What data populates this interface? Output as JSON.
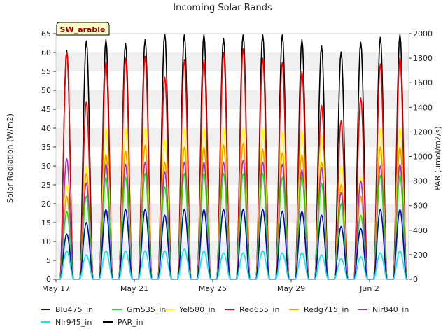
{
  "chart_data": {
    "type": "line",
    "title": "Incoming Solar Bands",
    "badge": "SW_arable",
    "ylabel_left": "Solar Radiation (W/m2)",
    "ylabel_right": "PAR (umol/m2/s)",
    "y_left_range": [
      0,
      65
    ],
    "y_right_range": [
      0,
      2000
    ],
    "y_left_ticks": [
      0,
      5,
      10,
      15,
      20,
      25,
      30,
      35,
      40,
      45,
      50,
      55,
      60,
      65
    ],
    "y_right_ticks": [
      0,
      200,
      400,
      600,
      800,
      1000,
      1200,
      1400,
      1600,
      1800,
      2000
    ],
    "x_range_days": [
      "May 17 00:00",
      "Jun 4 00:00"
    ],
    "x_ticks": [
      {
        "label": "May 17",
        "date": "2024-05-17"
      },
      {
        "label": "May 21",
        "date": "2024-05-21"
      },
      {
        "label": "May 25",
        "date": "2024-05-25"
      },
      {
        "label": "May 29",
        "date": "2024-05-29"
      },
      {
        "label": "Jun 2",
        "date": "2024-06-02"
      }
    ],
    "grid": "horizontal bands",
    "day_dates": [
      "May 17",
      "May 18",
      "May 19",
      "May 20",
      "May 21",
      "May 22",
      "May 23",
      "May 24",
      "May 25",
      "May 26",
      "May 27",
      "May 28",
      "May 29",
      "May 30",
      "May 31",
      "Jun 1",
      "Jun 2",
      "Jun 3"
    ],
    "series": [
      {
        "name": "Blu475_in",
        "color": "#0000cc",
        "axis": "left",
        "daily_peak": [
          12,
          15,
          18.5,
          18.5,
          18.5,
          17,
          18.5,
          18.5,
          18.5,
          18.5,
          18.5,
          18,
          18,
          17,
          14,
          13.5,
          18.5,
          18.5
        ]
      },
      {
        "name": "Grn535_in",
        "color": "#22dd22",
        "axis": "left",
        "daily_peak": [
          18,
          22,
          27,
          27,
          28,
          24.5,
          28,
          28,
          28,
          28,
          28,
          27,
          27,
          25.5,
          20,
          17,
          27.5,
          27.5
        ]
      },
      {
        "name": "Yel580_in",
        "color": "#ffff00",
        "axis": "left",
        "daily_peak": [
          25,
          30,
          40,
          40,
          40,
          37,
          40,
          40,
          40,
          40,
          40,
          39,
          39,
          38,
          30,
          27,
          40,
          40
        ]
      },
      {
        "name": "Red655_in",
        "color": "#ee0000",
        "axis": "left",
        "daily_peak": [
          60,
          47,
          57.5,
          58.5,
          59,
          53.5,
          58,
          58,
          60,
          61,
          58.5,
          57.5,
          55,
          46,
          42,
          48,
          57,
          58.5
        ]
      },
      {
        "name": "Redg715_in",
        "color": "#ff9900",
        "axis": "left",
        "daily_peak": [
          22,
          28,
          33,
          34,
          35.5,
          31,
          35,
          35,
          35.5,
          36,
          34.5,
          33.5,
          33,
          31,
          25,
          22,
          35,
          35
        ]
      },
      {
        "name": "Nir840_in",
        "color": "#9933cc",
        "axis": "left",
        "daily_peak": [
          32,
          25.5,
          30.5,
          30.5,
          31,
          28.5,
          31,
          31,
          31,
          31.5,
          31,
          30.5,
          29,
          29.5,
          23,
          26,
          30,
          30.5
        ]
      },
      {
        "name": "Nir945_in",
        "color": "#00eeee",
        "axis": "left",
        "daily_peak": [
          7.5,
          6.5,
          7.5,
          7.5,
          7.5,
          7.5,
          8,
          7.5,
          7,
          7,
          7.5,
          7,
          7,
          6.5,
          5.5,
          6,
          7,
          7.5
        ]
      },
      {
        "name": "PAR_in",
        "color": "#000000",
        "axis": "right",
        "daily_peak": [
          1860,
          1940,
          1950,
          1920,
          1950,
          2000,
          1990,
          1990,
          1960,
          1990,
          1990,
          1990,
          1950,
          1900,
          1850,
          1930,
          1970,
          1990
        ]
      }
    ]
  }
}
